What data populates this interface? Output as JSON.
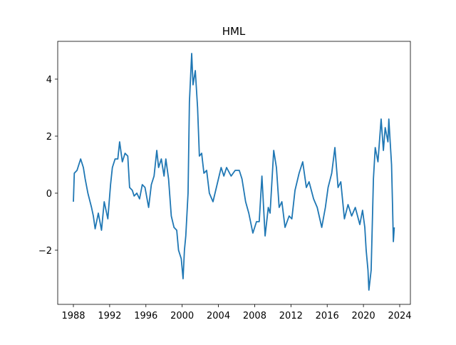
{
  "chart_data": {
    "type": "line",
    "title": "HML",
    "x": [
      1988.0,
      1988.1,
      1988.4,
      1988.6,
      1988.8,
      1989.1,
      1989.3,
      1989.6,
      1990.0,
      1990.2,
      1990.4,
      1990.75,
      1991.1,
      1991.4,
      1991.8,
      1992.1,
      1992.3,
      1992.6,
      1992.9,
      1993.1,
      1993.4,
      1993.7,
      1994.0,
      1994.2,
      1994.5,
      1994.7,
      1995.0,
      1995.3,
      1995.6,
      1995.9,
      1996.3,
      1996.6,
      1996.9,
      1997.2,
      1997.4,
      1997.7,
      1998.0,
      1998.2,
      1998.5,
      1998.8,
      1999.1,
      1999.4,
      1999.6,
      1999.9,
      2000.1,
      2000.25,
      2000.4,
      2000.65,
      2000.8,
      2001.05,
      2001.2,
      2001.45,
      2001.7,
      2001.9,
      2002.15,
      2002.4,
      2002.7,
      2003.0,
      2003.4,
      2003.7,
      2004.3,
      2004.6,
      2004.9,
      2005.4,
      2005.85,
      2006.3,
      2006.6,
      2007.0,
      2007.35,
      2007.8,
      2008.2,
      2008.5,
      2008.8,
      2009.15,
      2009.5,
      2009.7,
      2010.1,
      2010.4,
      2010.7,
      2011.0,
      2011.35,
      2011.8,
      2012.1,
      2012.45,
      2012.9,
      2013.3,
      2013.7,
      2014.0,
      2014.5,
      2014.9,
      2015.4,
      2015.8,
      2016.1,
      2016.5,
      2016.85,
      2017.2,
      2017.5,
      2017.9,
      2018.3,
      2018.7,
      2019.1,
      2019.6,
      2019.9,
      2020.15,
      2020.3,
      2020.5,
      2020.6,
      2020.85,
      2021.1,
      2021.3,
      2021.6,
      2021.95,
      2022.2,
      2022.4,
      2022.7,
      2022.8,
      2023.1,
      2023.2,
      2023.3,
      2023.4
    ],
    "series": [
      {
        "color": "#1f77b4",
        "values": [
          -0.3,
          0.7,
          0.8,
          1.0,
          1.2,
          0.9,
          0.5,
          0.0,
          -0.5,
          -0.8,
          -1.25,
          -0.7,
          -1.3,
          -0.3,
          -0.9,
          0.3,
          0.9,
          1.2,
          1.2,
          1.8,
          1.1,
          1.4,
          1.3,
          0.2,
          0.1,
          -0.1,
          0.0,
          -0.2,
          0.3,
          0.2,
          -0.5,
          0.3,
          0.6,
          1.5,
          0.9,
          1.2,
          0.6,
          1.2,
          0.5,
          -0.8,
          -1.2,
          -1.3,
          -2.0,
          -2.3,
          -3.0,
          -2.0,
          -1.5,
          0.0,
          3.2,
          4.9,
          3.8,
          4.3,
          3.0,
          1.3,
          1.4,
          0.7,
          0.8,
          0.0,
          -0.3,
          0.1,
          0.9,
          0.6,
          0.9,
          0.6,
          0.8,
          0.8,
          0.5,
          -0.3,
          -0.7,
          -1.4,
          -1.0,
          -1.0,
          0.6,
          -1.5,
          -0.5,
          -0.7,
          1.5,
          0.9,
          -0.5,
          -0.3,
          -1.2,
          -0.8,
          -0.9,
          0.1,
          0.7,
          1.1,
          0.2,
          0.4,
          -0.2,
          -0.5,
          -1.2,
          -0.5,
          0.2,
          0.7,
          1.6,
          0.2,
          0.4,
          -0.9,
          -0.4,
          -0.8,
          -0.5,
          -1.1,
          -0.6,
          -1.2,
          -2.0,
          -2.7,
          -3.4,
          -2.7,
          0.5,
          1.6,
          1.1,
          2.6,
          1.5,
          2.3,
          1.8,
          2.6,
          1.0,
          -0.3,
          -1.7,
          -1.2
        ]
      }
    ],
    "xlim": [
      1986.27,
      2025.18
    ],
    "xticks": [
      1988,
      1992,
      1996,
      2000,
      2004,
      2008,
      2012,
      2016,
      2020,
      2024
    ],
    "ylim": [
      -3.9,
      5.325
    ],
    "yticks": [
      {
        "value": -2,
        "label": "−2"
      },
      0,
      2,
      4
    ]
  }
}
